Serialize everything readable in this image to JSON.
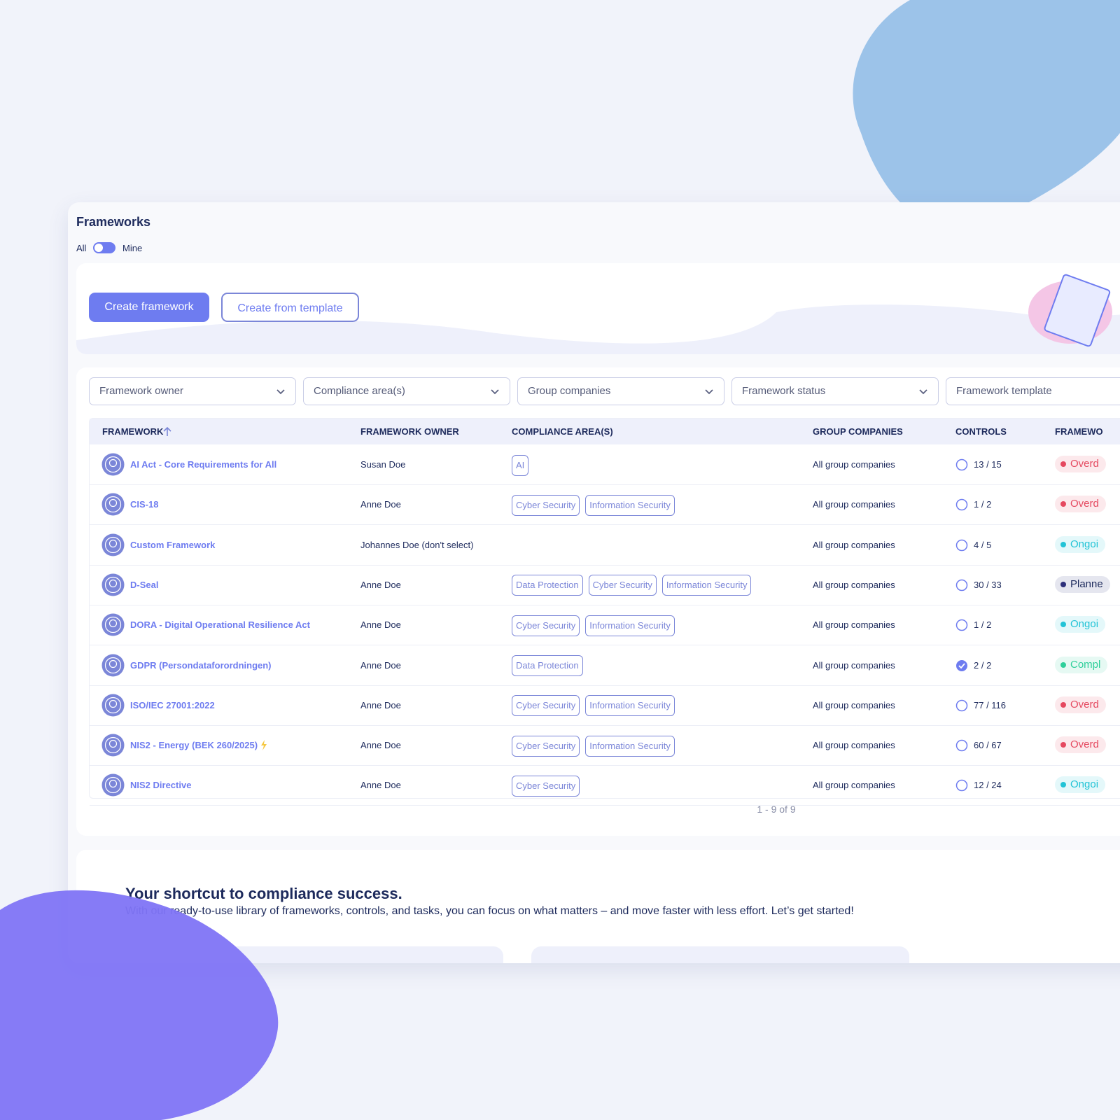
{
  "header": {
    "title": "Frameworks",
    "toggle_left": "All",
    "toggle_right": "Mine"
  },
  "actions": {
    "primary": "Create framework",
    "secondary": "Create from template"
  },
  "filters": [
    "Framework owner",
    "Compliance area(s)",
    "Group companies",
    "Framework status",
    "Framework template"
  ],
  "table": {
    "columns": [
      "FRAMEWORK",
      "FRAMEWORK OWNER",
      "COMPLIANCE AREA(S)",
      "GROUP COMPANIES",
      "CONTROLS",
      "FRAMEWO"
    ],
    "rows": [
      {
        "name": "AI Act - Core Requirements for All",
        "owner": "Susan Doe",
        "areas": [
          "AI"
        ],
        "companies": "All group companies",
        "controls": "13 / 15",
        "status": "Overd",
        "status_color": "#e5485f"
      },
      {
        "name": "CIS-18",
        "owner": "Anne Doe",
        "areas": [
          "Cyber Security",
          "Information Security"
        ],
        "companies": "All group companies",
        "controls": "1 / 2",
        "status": "Overd",
        "status_color": "#e5485f"
      },
      {
        "name": "Custom Framework",
        "owner": "Johannes Doe (don't select)",
        "areas": [],
        "companies": "All group companies",
        "controls": "4 / 5",
        "status": "Ongoi",
        "status_color": "#22c3d6"
      },
      {
        "name": "D-Seal",
        "owner": "Anne Doe",
        "areas": [
          "Data Protection",
          "Cyber Security",
          "Information Security"
        ],
        "companies": "All group companies",
        "controls": "30 / 33",
        "status": "Planne",
        "status_color": "#2d2f7a"
      },
      {
        "name": "DORA - Digital Operational Resilience Act",
        "owner": "Anne Doe",
        "areas": [
          "Cyber Security",
          "Information Security"
        ],
        "companies": "All group companies",
        "controls": "1 / 2",
        "status": "Ongoi",
        "status_color": "#22c3d6"
      },
      {
        "name": "GDPR (Persondataforordningen)",
        "owner": "Anne Doe",
        "areas": [
          "Data Protection"
        ],
        "companies": "All group companies",
        "controls": "2 / 2",
        "status": "Compl",
        "status_color": "#2ecf9a"
      },
      {
        "name": "ISO/IEC 27001:2022",
        "owner": "Anne Doe",
        "areas": [
          "Cyber Security",
          "Information Security"
        ],
        "companies": "All group companies",
        "controls": "77 / 116",
        "status": "Overd",
        "status_color": "#e5485f"
      },
      {
        "name": "NIS2 - Energy (BEK 260/2025)",
        "owner": "Anne Doe",
        "areas": [
          "Cyber Security",
          "Information Security"
        ],
        "companies": "All group companies",
        "controls": "60 / 67",
        "status": "Overd",
        "status_color": "#e5485f"
      },
      {
        "name": "NIS2 Directive",
        "owner": "Anne Doe",
        "areas": [
          "Cyber Security"
        ],
        "companies": "All group companies",
        "controls": "12 / 24",
        "status": "Ongoi",
        "status_color": "#22c3d6"
      }
    ],
    "pagination": "1 - 9 of 9"
  },
  "promo": {
    "title": "Your shortcut to compliance success.",
    "text": "With our ready-to-use library of frameworks, controls, and tasks, you can focus on what matters – and move faster with less effort. Let’s get started!"
  }
}
